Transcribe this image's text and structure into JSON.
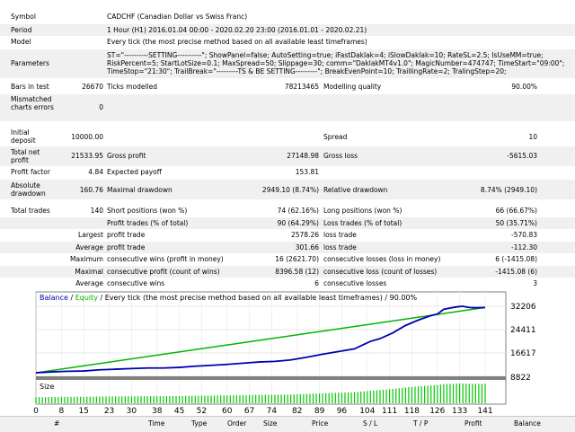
{
  "report": {
    "symbol": {
      "label": "Symbol",
      "value": "CADCHF (Canadian Dollar vs Swiss Franc)"
    },
    "period": {
      "label": "Period",
      "value": "1 Hour (H1) 2016.01.04 00:00 - 2020.02.20 23:00 (2016.01.01 - 2020.02.21)"
    },
    "model": {
      "label": "Model",
      "value": "Every tick (the most precise method based on all available least timeframes)"
    },
    "parameters": {
      "label": "Parameters",
      "value": "ST=\"----------SETTING----------\"; ShowPanel=false; AutoSetting=true; iFastDaklak=4; iSlowDaklak=10; RateSL=2.5; IsUseMM=true;\nRiskPercent=5; StartLotSize=0.1; MaxSpread=50; Slippage=30; comm=\"DaklakMT4v1.0\"; MagicNumber=474747; TimeStart=\"09:00\";\nTimeStop=\"21:30\"; TrailBreak=\"---------TS & BE SETTING---------\"; BreakEvenPoint=10; TraillingRate=2; TralingStep=20;"
    },
    "bars_in_test": {
      "label": "Bars in test",
      "value": "26670"
    },
    "ticks_modelled": {
      "label": "Ticks modelled",
      "value": "78213465"
    },
    "modelling_quality": {
      "label": "Modelling quality",
      "value": "90.00%"
    },
    "mismatched": {
      "label": "Mismatched charts errors",
      "value": "0"
    },
    "initial_deposit": {
      "label": "Initial deposit",
      "value": "10000.00"
    },
    "spread": {
      "label": "Spread",
      "value": "10"
    },
    "total_net_profit": {
      "label": "Total net profit",
      "value": "21533.95"
    },
    "gross_profit": {
      "label": "Gross profit",
      "value": "27148.98"
    },
    "gross_loss": {
      "label": "Gross loss",
      "value": "-5615.03"
    },
    "profit_factor": {
      "label": "Profit factor",
      "value": "4.84"
    },
    "expected_payoff": {
      "label": "Expected payoff",
      "value": "153.81"
    },
    "absolute_drawdown": {
      "label": "Absolute drawdown",
      "value": "160.76"
    },
    "maximal_drawdown": {
      "label": "Maximal drawdown",
      "value": "2949.10 (8.74%)"
    },
    "relative_drawdown": {
      "label": "Relative drawdown",
      "value": "8.74% (2949.10)"
    },
    "total_trades": {
      "label": "Total trades",
      "value": "140"
    },
    "short_positions": {
      "label": "Short positions (won %)",
      "value": "74 (62.16%)"
    },
    "long_positions": {
      "label": "Long positions (won %)",
      "value": "66 (66.67%)"
    },
    "profit_trades": {
      "label": "Profit trades (% of total)",
      "value": "90 (64.29%)"
    },
    "loss_trades": {
      "label": "Loss trades (% of total)",
      "value": "50 (35.71%)"
    },
    "largest": {
      "label": "Largest",
      "profit_label": "profit trade",
      "profit_value": "2578.26",
      "loss_label": "loss trade",
      "loss_value": "-570.83"
    },
    "average": {
      "label": "Average",
      "profit_label": "profit trade",
      "profit_value": "301.66",
      "loss_label": "loss trade",
      "loss_value": "-112.30"
    },
    "maximum": {
      "label": "Maximum",
      "wins_label": "consecutive wins (profit in money)",
      "wins_value": "16 (2621.70)",
      "losses_label": "consecutive losses (loss in money)",
      "losses_value": "6 (-1415.08)"
    },
    "maximal": {
      "label": "Maximal",
      "profit_label": "consecutive profit (count of wins)",
      "profit_value": "8396.58 (12)",
      "loss_label": "consecutive loss (count of losses)",
      "loss_value": "-1415.08 (6)"
    },
    "average_consec": {
      "label": "Average",
      "wins_label": "consecutive wins",
      "wins_value": "6",
      "losses_label": "consecutive losses",
      "losses_value": "3"
    }
  },
  "chart_data": {
    "type": "line",
    "legend": {
      "balance": "Balance",
      "sep": " / ",
      "equity": "Equity",
      "rest": " / Every tick (the most precise method based on all available least timeframes) / 90.00%"
    },
    "size_label": "Size",
    "y_ticks": [
      8822,
      16617,
      24411,
      32206
    ],
    "x_ticks": [
      "0",
      "8",
      "15",
      "23",
      "30",
      "38",
      "45",
      "52",
      "60",
      "67",
      "74",
      "82",
      "89",
      "96",
      "104",
      "111",
      "118",
      "126",
      "133",
      "141"
    ],
    "ylim": [
      8822,
      32206
    ],
    "xlim": [
      0,
      141
    ],
    "series": [
      {
        "name": "Balance",
        "color": "#0000b4",
        "x": [
          0,
          5,
          10,
          15,
          20,
          25,
          30,
          35,
          40,
          45,
          50,
          55,
          60,
          65,
          70,
          75,
          80,
          85,
          90,
          95,
          100,
          105,
          108,
          112,
          116,
          120,
          124,
          126,
          128,
          130,
          132,
          134,
          136,
          138,
          141
        ],
        "y": [
          10000,
          10300,
          10500,
          10600,
          11000,
          11200,
          11400,
          11600,
          11600,
          11800,
          12200,
          12500,
          12800,
          13200,
          13600,
          13800,
          14300,
          15200,
          16200,
          17100,
          18000,
          20500,
          21400,
          23300,
          25800,
          27600,
          29100,
          29600,
          31200,
          31600,
          32000,
          32206,
          31800,
          31700,
          31800
        ]
      },
      {
        "name": "Equity",
        "color": "#00b400",
        "x": [
          0,
          141
        ],
        "y": [
          10000,
          31800
        ]
      }
    ],
    "colors": {
      "balance": "#0000b4",
      "equity": "#00b400",
      "size_bars": "#00c800"
    }
  },
  "table_header": [
    "#",
    "Time",
    "Type",
    "Order",
    "Size",
    "Price",
    "S / L",
    "T / P",
    "Profit",
    "Balance"
  ]
}
